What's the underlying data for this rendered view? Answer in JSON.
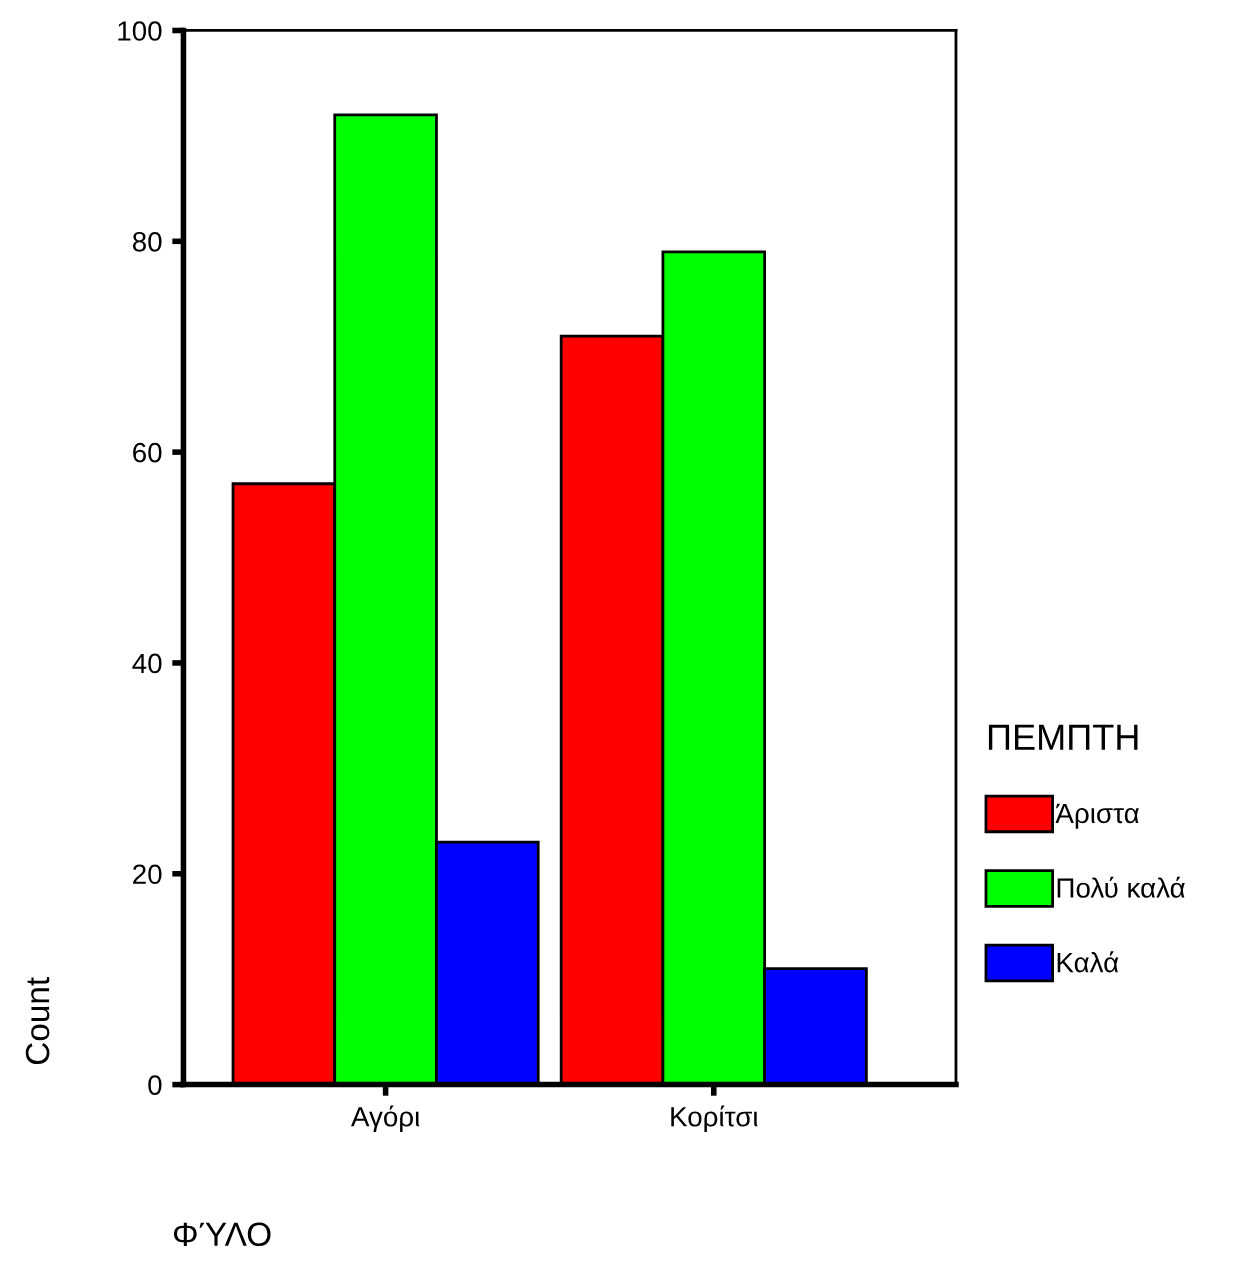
{
  "chart_data": {
    "type": "bar",
    "categories": [
      "Αγόρι",
      "Κορίτσι"
    ],
    "series": [
      {
        "name": "Άριστα",
        "color": "#ff0000",
        "values": [
          57,
          71
        ]
      },
      {
        "name": "Πολύ καλά",
        "color": "#00ff00",
        "values": [
          92,
          79
        ]
      },
      {
        "name": "Καλά",
        "color": "#0000ff",
        "values": [
          23,
          11
        ]
      }
    ],
    "xlabel": "ΦΎΛΟ",
    "ylabel": "Count",
    "legend_title": "ΠΕΜΠΤΗ",
    "legend": "right",
    "ylim": [
      0,
      100
    ],
    "yticks": [
      0,
      20,
      40,
      60,
      80,
      100
    ],
    "grid": false
  }
}
